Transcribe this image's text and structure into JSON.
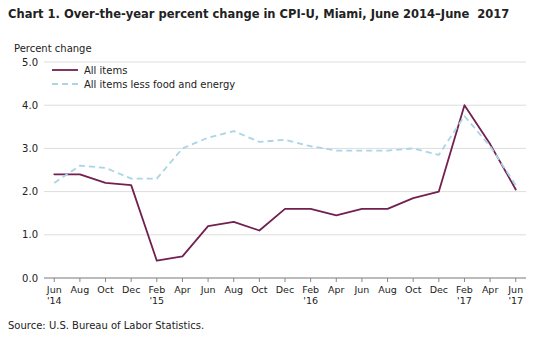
{
  "chart_data": {
    "type": "line",
    "title": "Chart 1. Over-the-year percent change in CPI-U, Miami, June 2014–June  2017",
    "ylabel": "Percent change",
    "source": "Source: U.S. Bureau of Labor Statistics.",
    "categories": [
      "Jun\n'14",
      "Aug",
      "Oct",
      "Dec",
      "Feb\n'15",
      "Apr",
      "Jun",
      "Aug",
      "Oct",
      "Dec",
      "Feb\n'16",
      "Apr",
      "Jun",
      "Aug",
      "Oct",
      "Dec",
      "Feb\n'17",
      "Apr",
      "Jun\n'17"
    ],
    "series": [
      {
        "name": "All items",
        "color": "#722050",
        "line_style": "solid",
        "values": [
          2.4,
          2.4,
          2.2,
          2.15,
          0.4,
          0.5,
          1.2,
          1.3,
          1.1,
          1.6,
          1.6,
          1.45,
          1.6,
          1.6,
          1.85,
          2.0,
          4.0,
          3.1,
          2.05
        ]
      },
      {
        "name": "All items less food and energy",
        "color": "#aad4e8",
        "line_style": "dashed",
        "values": [
          2.2,
          2.6,
          2.55,
          2.3,
          2.3,
          3.0,
          3.25,
          3.4,
          3.15,
          3.2,
          3.05,
          2.95,
          2.95,
          2.95,
          3.0,
          2.85,
          3.75,
          3.05,
          2.15
        ]
      }
    ],
    "ylim": [
      0.0,
      5.0
    ],
    "yticks": [
      {
        "value": 0.0,
        "label": "0.0"
      },
      {
        "value": 1.0,
        "label": "1.0"
      },
      {
        "value": 2.0,
        "label": "2.0"
      },
      {
        "value": 3.0,
        "label": "3.0"
      },
      {
        "value": 4.0,
        "label": "4.0"
      },
      {
        "value": 5.0,
        "label": "5.0"
      }
    ],
    "grid": true,
    "legend": "upper left"
  }
}
